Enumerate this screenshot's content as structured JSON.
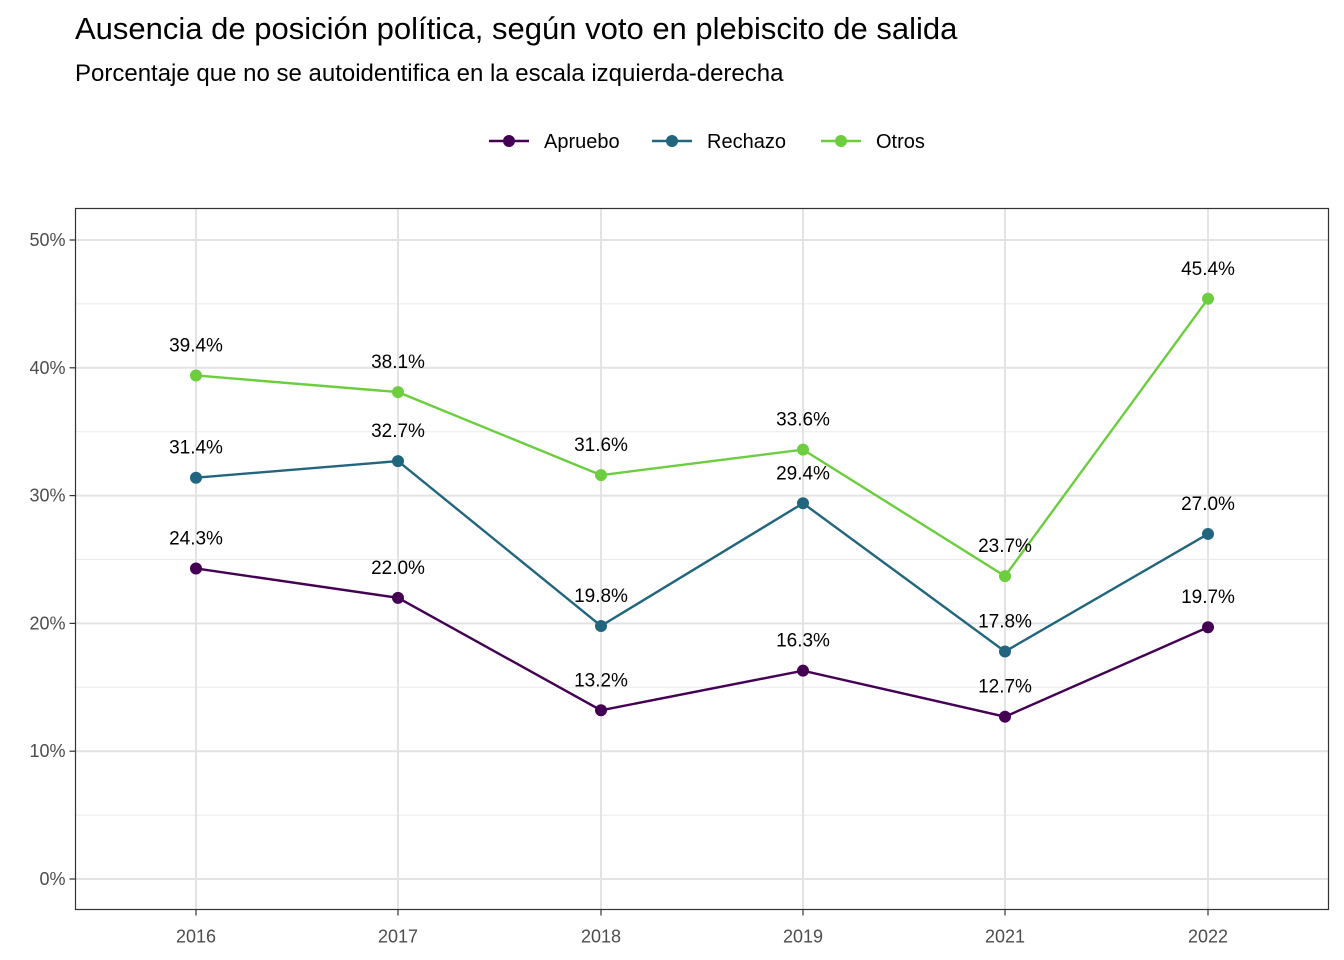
{
  "chart_data": {
    "type": "line",
    "title": "Ausencia de posición política, según voto en plebiscito de salida",
    "subtitle": "Porcentaje que no se autoidentifica en la escala izquierda-derecha",
    "xlabel": "",
    "ylabel": "",
    "categories": [
      "2016",
      "2017",
      "2018",
      "2019",
      "2021",
      "2022"
    ],
    "ylim": [
      0,
      50
    ],
    "yticks": [
      "0%",
      "10%",
      "20%",
      "30%",
      "40%",
      "50%"
    ],
    "grid": true,
    "legend_position": "top",
    "series": [
      {
        "name": "Apruebo",
        "color": "#440154",
        "values": [
          24.3,
          22.0,
          13.2,
          16.3,
          12.7,
          19.7
        ],
        "labels": [
          "24.3%",
          "22.0%",
          "13.2%",
          "16.3%",
          "12.7%",
          "19.7%"
        ]
      },
      {
        "name": "Rechazo",
        "color": "#21667e",
        "values": [
          31.4,
          32.7,
          19.8,
          29.4,
          17.8,
          27.0
        ],
        "labels": [
          "31.4%",
          "32.7%",
          "19.8%",
          "29.4%",
          "17.8%",
          "27.0%"
        ]
      },
      {
        "name": "Otros",
        "color": "#6ccd3f",
        "values": [
          39.4,
          38.1,
          31.6,
          33.6,
          23.7,
          45.4
        ],
        "labels": [
          "39.4%",
          "38.1%",
          "31.6%",
          "33.6%",
          "23.7%",
          "45.4%"
        ]
      }
    ]
  }
}
